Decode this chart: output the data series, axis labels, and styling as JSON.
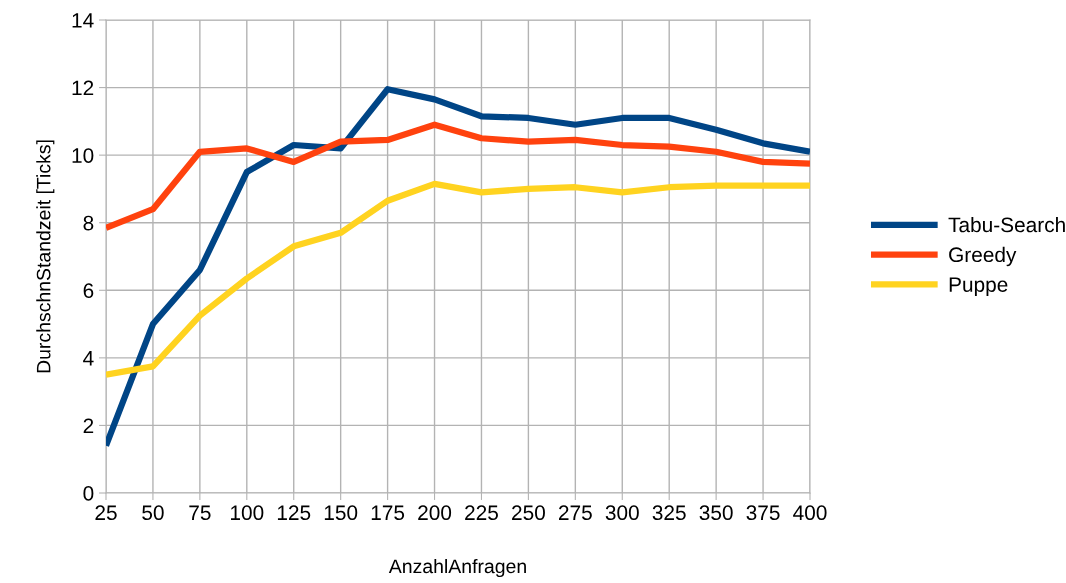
{
  "chart_data": {
    "type": "line",
    "xlabel": "AnzahlAnfragen",
    "ylabel": "DurchschnStandzeit [Ticks]",
    "x": [
      25,
      50,
      75,
      100,
      125,
      150,
      175,
      200,
      225,
      250,
      275,
      300,
      325,
      350,
      375,
      400
    ],
    "series": [
      {
        "name": "Tabu-Search",
        "color": "#004586",
        "values": [
          1.4,
          5.0,
          6.6,
          9.5,
          10.3,
          10.2,
          11.95,
          11.65,
          11.15,
          11.1,
          10.9,
          11.1,
          11.1,
          10.75,
          10.35,
          10.1
        ]
      },
      {
        "name": "Greedy",
        "color": "#ff420e",
        "values": [
          7.85,
          8.4,
          10.1,
          10.2,
          9.8,
          10.4,
          10.45,
          10.9,
          10.5,
          10.4,
          10.45,
          10.3,
          10.25,
          10.1,
          9.8,
          9.75
        ]
      },
      {
        "name": "Puppe",
        "color": "#ffd320",
        "values": [
          3.5,
          3.75,
          5.25,
          6.35,
          7.3,
          7.7,
          8.65,
          9.15,
          8.9,
          9.0,
          9.05,
          8.9,
          9.05,
          9.1,
          9.1,
          9.1
        ]
      }
    ],
    "xlim": [
      25,
      400
    ],
    "xticks": [
      25,
      50,
      75,
      100,
      125,
      150,
      175,
      200,
      225,
      250,
      275,
      300,
      325,
      350,
      375,
      400
    ],
    "ylim": [
      0,
      14
    ],
    "yticks": [
      0,
      2,
      4,
      6,
      8,
      10,
      12,
      14
    ],
    "grid": true,
    "legend": "right",
    "marker": "none",
    "line_style": "solid"
  }
}
